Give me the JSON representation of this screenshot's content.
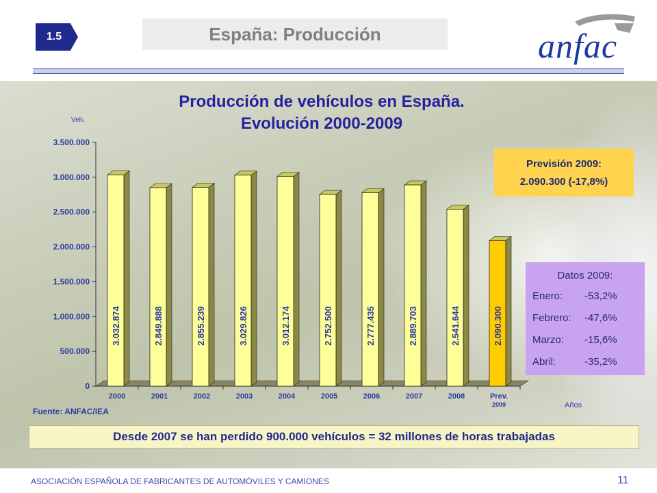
{
  "header": {
    "section_number": "1.5",
    "title": "España: Producción",
    "logo_text": "anfac"
  },
  "chart_data": {
    "type": "bar",
    "title_line1": "Producción de vehículos en España.",
    "title_line2": "Evolución 2000-2009",
    "ylabel": "Veh.",
    "xlabel": "Años",
    "ylim": [
      0,
      3500000
    ],
    "yticks": [
      0,
      500000,
      1000000,
      1500000,
      2000000,
      2500000,
      3000000,
      3500000
    ],
    "ytick_labels": [
      "0",
      "500.000",
      "1.000.000",
      "1.500.000",
      "2.000.000",
      "2.500.000",
      "3.000.000",
      "3.500.000"
    ],
    "categories": [
      "2000",
      "2001",
      "2002",
      "2003",
      "2004",
      "2005",
      "2006",
      "2007",
      "2008",
      "Prev. 2009"
    ],
    "category_labels_line1": [
      "2000",
      "2001",
      "2002",
      "2003",
      "2004",
      "2005",
      "2006",
      "2007",
      "2008",
      "Prev."
    ],
    "category_labels_line2": [
      "",
      "",
      "",
      "",
      "",
      "",
      "",
      "",
      "",
      "2009"
    ],
    "values": [
      3032874,
      2849888,
      2855239,
      3029826,
      3012174,
      2752500,
      2777435,
      2889703,
      2541644,
      2090300
    ],
    "value_labels": [
      "3.032.874",
      "2.849.888",
      "2.855.239",
      "3.029.826",
      "3.012.174",
      "2.752.500",
      "2.777.435",
      "2.889.703",
      "2.541.644",
      "2.090.300"
    ],
    "colors": [
      "#ffff99",
      "#ffff99",
      "#ffff99",
      "#ffff99",
      "#ffff99",
      "#ffff99",
      "#ffff99",
      "#ffff99",
      "#ffff99",
      "#ffcc00"
    ],
    "grid": false
  },
  "prevision": {
    "title": "Previsión 2009:",
    "value": "2.090.300  (-17,8%)"
  },
  "datos": {
    "title": "Datos 2009:",
    "rows": [
      {
        "label": "Enero:",
        "value": "-53,2%"
      },
      {
        "label": "Febrero:",
        "value": "-47,6%"
      },
      {
        "label": "Marzo:",
        "value": "-15,6%"
      },
      {
        "label": "Abril:",
        "value": "-35,2%"
      }
    ]
  },
  "source": "Fuente: ANFAC/IEA",
  "banner": "Desde 2007 se han perdido 900.000 vehículos = 32 millones de horas trabajadas",
  "footer": {
    "organization": "ASOCIACIÓN ESPAÑOLA DE FABRICANTES DE AUTOMÓVILES Y CAMIONES",
    "page": "11"
  }
}
